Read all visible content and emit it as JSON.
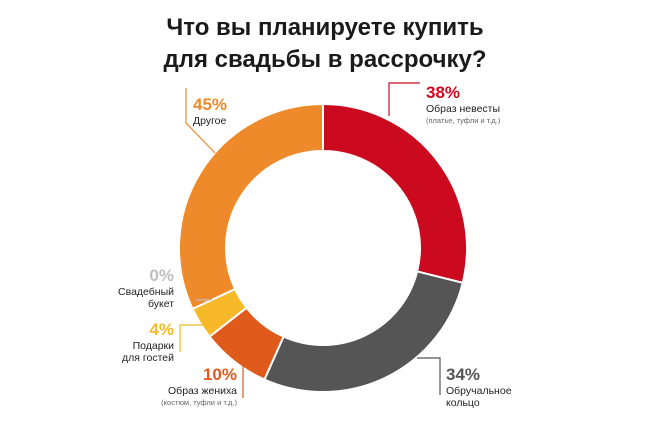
{
  "title_line1": "Что вы планируете купить",
  "title_line2": "для свадьбы в рассрочку?",
  "chart_data": {
    "type": "pie",
    "style": "donut",
    "categories": [
      "Образ невесты",
      "Обручальное кольцо",
      "Образ жениха",
      "Подарки для гостей",
      "Свадебный букет",
      "Другое"
    ],
    "values": [
      38,
      34,
      10,
      4,
      0,
      45
    ],
    "slices": [
      {
        "key": "bride",
        "pct_text": "38%",
        "label_lines": [
          "Образ невесты"
        ],
        "sub": "(платье, туфли и т.д.)",
        "value": 38,
        "color": "#cc0a1f"
      },
      {
        "key": "ring",
        "pct_text": "34%",
        "label_lines": [
          "Обручальное",
          "кольцо"
        ],
        "sub": "",
        "value": 34,
        "color": "#555555"
      },
      {
        "key": "groom",
        "pct_text": "10%",
        "label_lines": [
          "Образ жениха"
        ],
        "sub": "(костюм, туфли и т.д.)",
        "value": 10,
        "color": "#e05a1c"
      },
      {
        "key": "gifts",
        "pct_text": "4%",
        "label_lines": [
          "Подарки",
          "для гостей"
        ],
        "sub": "",
        "value": 4,
        "color": "#f7b92a"
      },
      {
        "key": "bouquet",
        "pct_text": "0%",
        "label_lines": [
          "Свадебный",
          "букет"
        ],
        "sub": "",
        "value": 0,
        "color": "#bfbfbf"
      },
      {
        "key": "other",
        "pct_text": "45%",
        "label_lines": [
          "Другое"
        ],
        "sub": "",
        "value": 45,
        "color": "#ef8a2a"
      }
    ]
  }
}
